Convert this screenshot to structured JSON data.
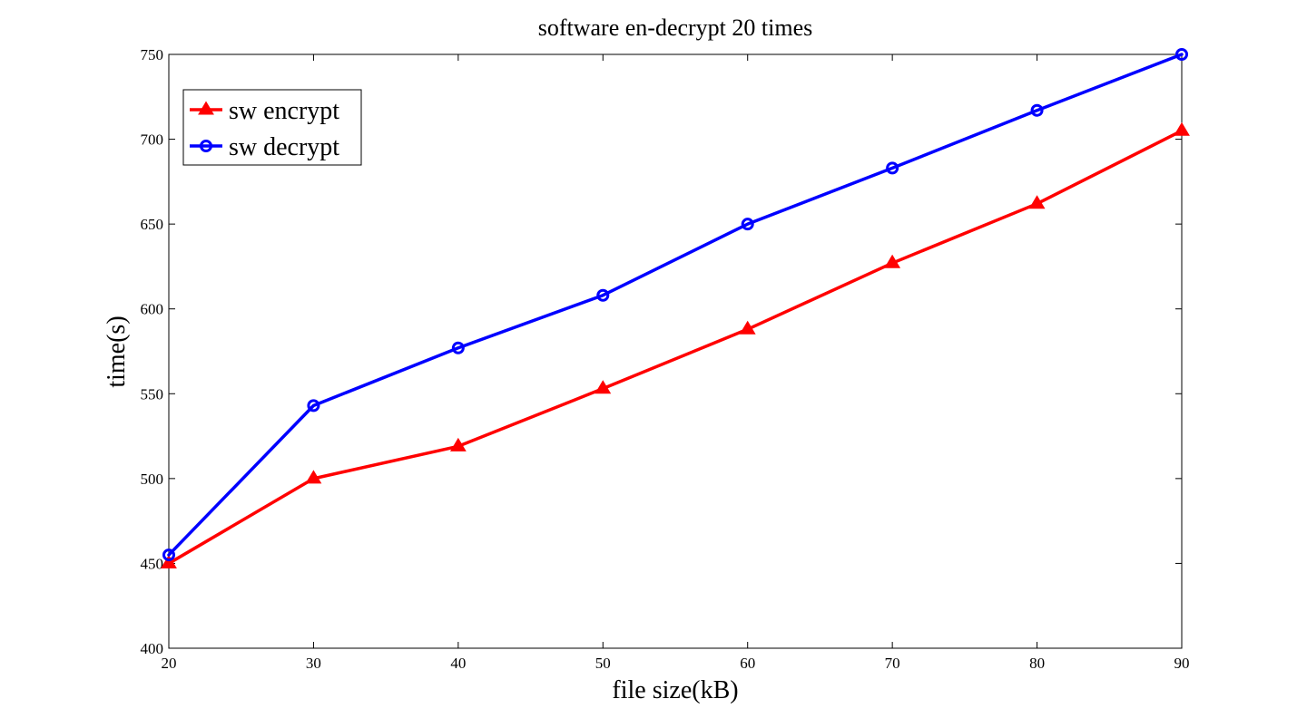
{
  "chart_data": {
    "type": "line",
    "title": "software en-decrypt 20 times",
    "xlabel": "file size(kB)",
    "ylabel": "time(s)",
    "x": [
      20,
      30,
      40,
      50,
      60,
      70,
      80,
      90
    ],
    "xlim": [
      20,
      90
    ],
    "ylim": [
      400,
      750
    ],
    "xticks": [
      "20",
      "30",
      "40",
      "50",
      "60",
      "70",
      "80",
      "90"
    ],
    "yticks": [
      "400",
      "450",
      "500",
      "550",
      "600",
      "650",
      "700",
      "750"
    ],
    "grid": false,
    "legend_position": "top-left",
    "series": [
      {
        "name": "sw encrypt",
        "color": "#ff0000",
        "marker": "triangle",
        "values": [
          450,
          500,
          519,
          553,
          588,
          627,
          662,
          705
        ]
      },
      {
        "name": "sw decrypt",
        "color": "#0000ff",
        "marker": "circle",
        "values": [
          455,
          543,
          577,
          608,
          650,
          683,
          717,
          750
        ]
      }
    ]
  }
}
